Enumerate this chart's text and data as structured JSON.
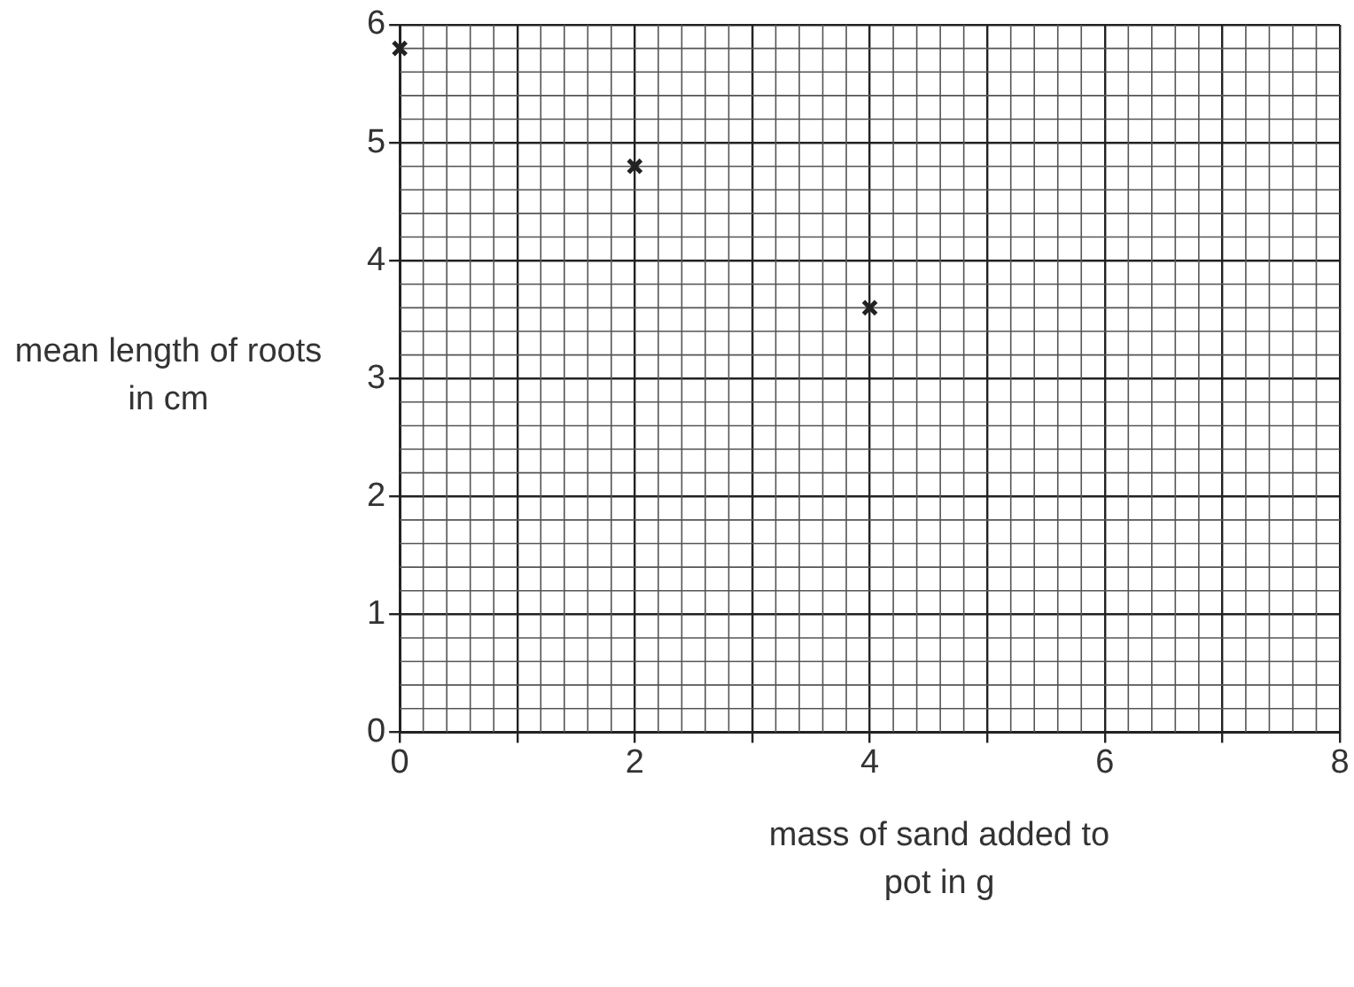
{
  "chart_data": {
    "type": "scatter",
    "xlabel": "mass of sand added to pot in g",
    "ylabel": "mean length of roots in cm",
    "x": [
      0,
      2,
      4
    ],
    "values": [
      5.8,
      4.8,
      3.6
    ],
    "color": "#222222",
    "marker": "cross",
    "xlim": [
      0,
      8
    ],
    "xticks": [
      0,
      {
        "value": 1,
        "label": null
      },
      2,
      {
        "value": 3,
        "label": null
      },
      4,
      {
        "value": 5,
        "label": null
      },
      6,
      {
        "value": 7,
        "label": null
      },
      8
    ],
    "ylim": [
      0,
      6
    ],
    "yticks": [
      0,
      1,
      2,
      3,
      4,
      5,
      6
    ],
    "grid": true
  }
}
